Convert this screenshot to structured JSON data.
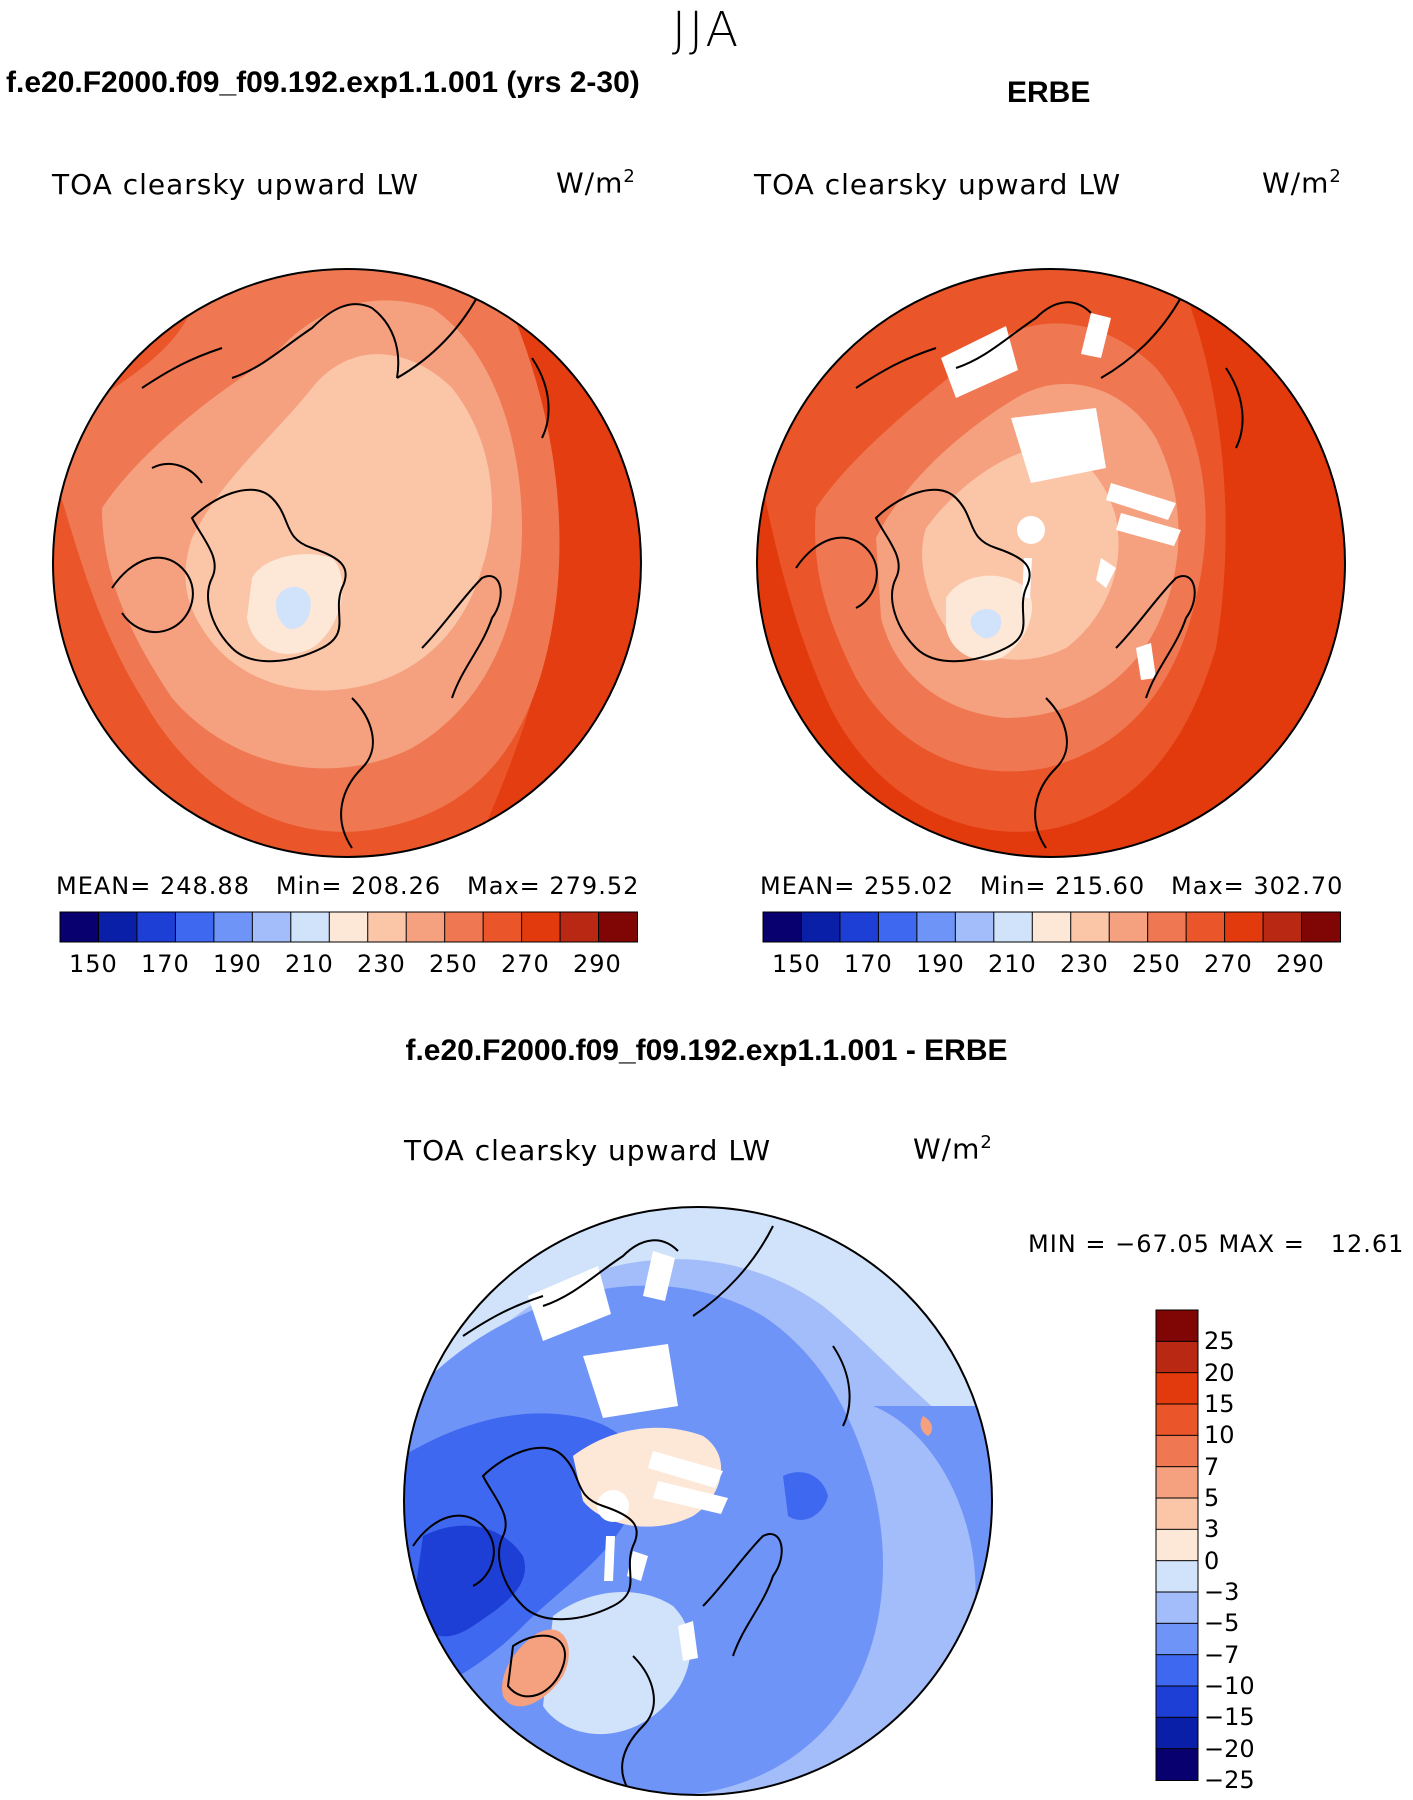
{
  "season": "JJA",
  "colors": {
    "abs_palette": [
      "#08006e",
      "#0a1fa8",
      "#1e3fd6",
      "#3f68f0",
      "#6f94f7",
      "#a3bcfa",
      "#d1e2fb",
      "#fde8d8",
      "#fbc5a8",
      "#f5a07f",
      "#ef7752",
      "#ea5529",
      "#e23a0d",
      "#b92812",
      "#7f0605"
    ],
    "diff_palette": [
      "#08006e",
      "#0a1fa8",
      "#1e3fd6",
      "#3f68f0",
      "#6f94f7",
      "#a3bcfa",
      "#d1e2fb",
      "#fde8d8",
      "#fbc5a8",
      "#f5a07f",
      "#ef7752",
      "#ea5529",
      "#e23a0d",
      "#b92812",
      "#7f0605"
    ]
  },
  "panels": {
    "model": {
      "title": "f.e20.F2000.f09_f09.192.exp1.1.001 (yrs 2-30)",
      "variable": "TOA clearsky upward LW",
      "units": "W/m",
      "units_exp": "2",
      "stats": "MEAN= 248.88   Min= 208.26   Max= 279.52"
    },
    "obs": {
      "title": "ERBE",
      "variable": "TOA clearsky upward LW",
      "units": "W/m",
      "units_exp": "2",
      "stats": "MEAN= 255.02   Min= 215.60   Max= 302.70"
    },
    "diff": {
      "title": "f.e20.F2000.f09_f09.192.exp1.1.001 - ERBE",
      "variable": "TOA clearsky upward LW",
      "units": "W/m",
      "units_exp": "2",
      "stats": "MIN = −67.05 MAX =   12.61"
    }
  },
  "chart_data": [
    {
      "type": "heatmap",
      "projection": "north-polar-stereographic",
      "title": "f.e20.F2000.f09_f09.192.exp1.1.001 (yrs 2-30)",
      "variable": "TOA clearsky upward LW",
      "units": "W/m2",
      "mean": 248.88,
      "min": 208.26,
      "max": 279.52,
      "colorbar_levels": [
        140,
        150,
        160,
        170,
        180,
        190,
        200,
        210,
        220,
        230,
        240,
        250,
        260,
        270,
        280,
        290
      ],
      "colorbar_tick_labels": [
        "150",
        "170",
        "190",
        "210",
        "230",
        "250",
        "270",
        "290"
      ]
    },
    {
      "type": "heatmap",
      "projection": "north-polar-stereographic",
      "title": "ERBE",
      "variable": "TOA clearsky upward LW",
      "units": "W/m2",
      "mean": 255.02,
      "min": 215.6,
      "max": 302.7,
      "colorbar_levels": [
        140,
        150,
        160,
        170,
        180,
        190,
        200,
        210,
        220,
        230,
        240,
        250,
        260,
        270,
        280,
        290
      ],
      "colorbar_tick_labels": [
        "150",
        "170",
        "190",
        "210",
        "230",
        "250",
        "270",
        "290"
      ]
    },
    {
      "type": "heatmap",
      "projection": "north-polar-stereographic",
      "title": "f.e20.F2000.f09_f09.192.exp1.1.001 - ERBE",
      "variable": "TOA clearsky upward LW",
      "units": "W/m2",
      "min": -67.05,
      "max": 12.61,
      "colorbar_levels": [
        -30,
        -25,
        -20,
        -15,
        -10,
        -7,
        -5,
        -3,
        0,
        3,
        5,
        7,
        10,
        15,
        20,
        25
      ],
      "colorbar_tick_labels": [
        "25",
        "20",
        "15",
        "10",
        "7",
        "5",
        "3",
        "0",
        "−3",
        "−5",
        "−7",
        "−10",
        "−15",
        "−20",
        "−25"
      ]
    }
  ]
}
